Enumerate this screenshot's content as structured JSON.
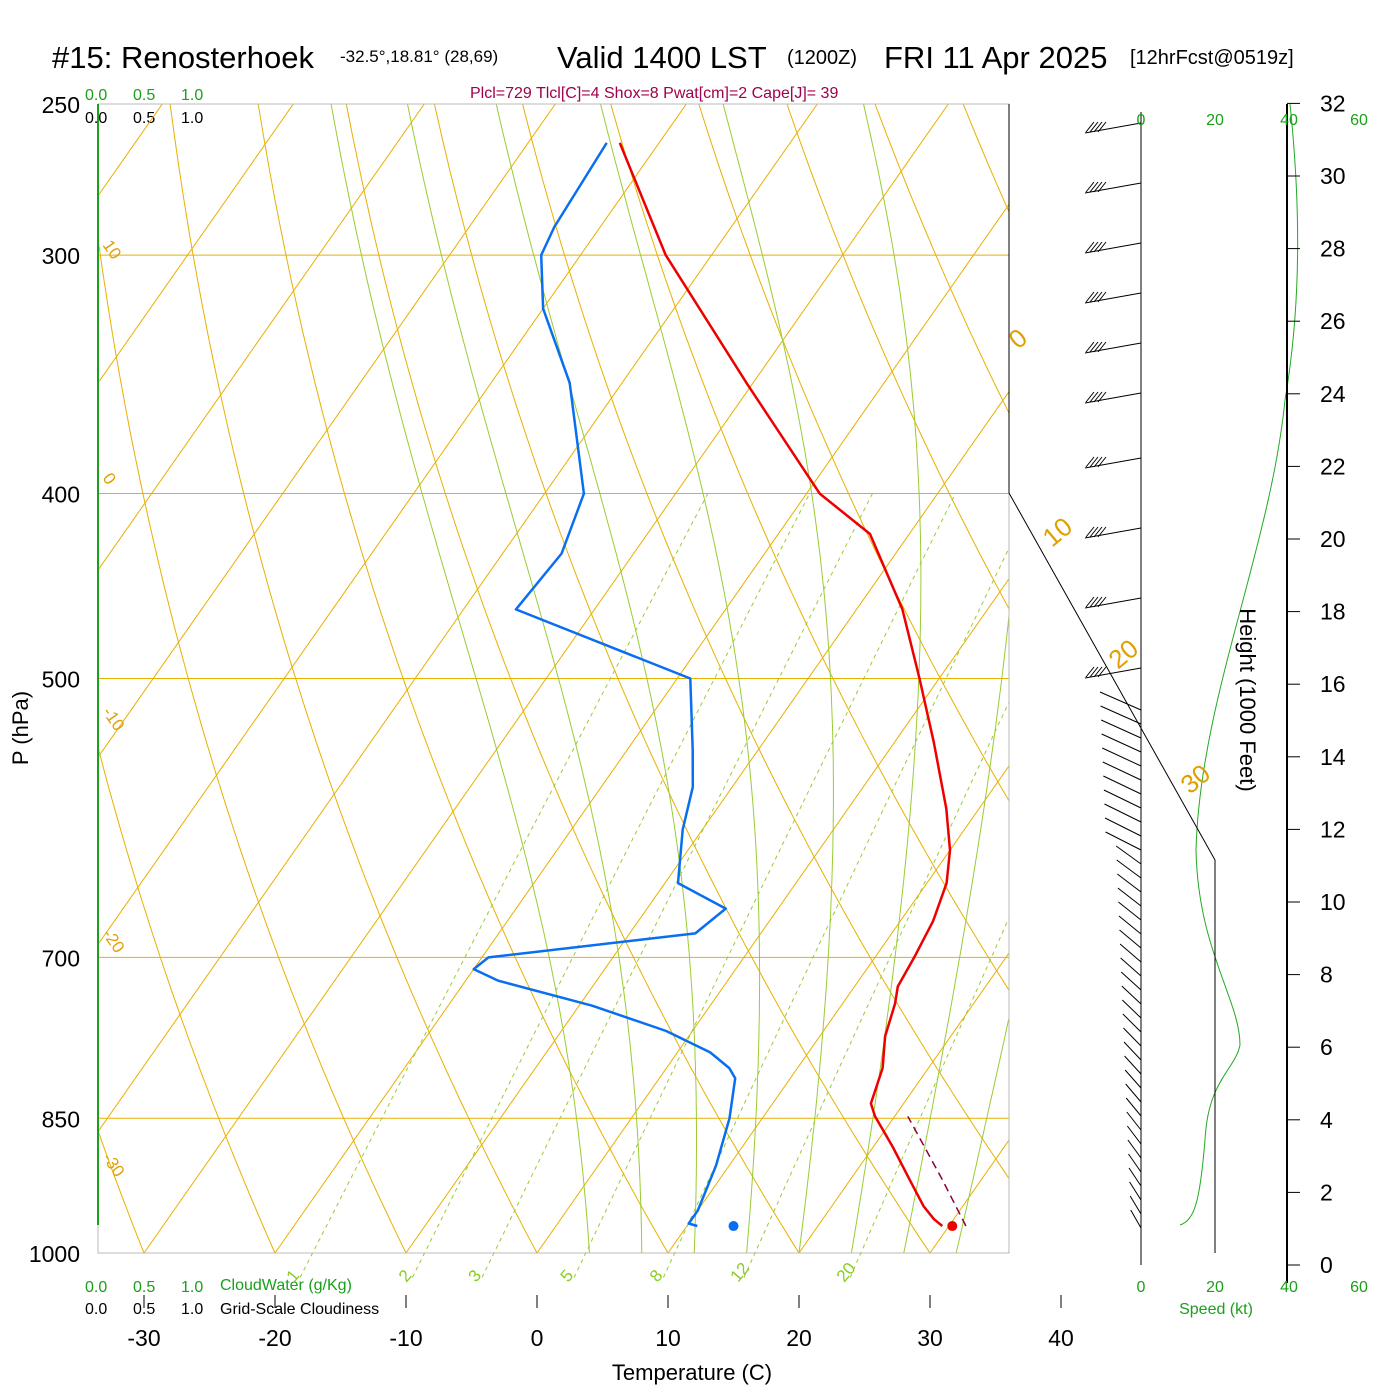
{
  "header": {
    "station": "#15: Renosterhoek",
    "coords": "-32.5°,18.81° (28,69)",
    "valid_label": "Valid 1400 LST",
    "utc": "(1200Z)",
    "date": "FRI 11 Apr 2025",
    "forecast": "[12hrFcst@0519z]"
  },
  "parcel_info": "Plcl=729 Tlcl[C]=4 Shox=8 Pwat[cm]=2 Cape[J]= 39",
  "scale_top": {
    "cloudwater_ticks": [
      "0.0",
      "0.5",
      "1.0"
    ],
    "cloudiness_ticks": [
      "0.0",
      "0.5",
      "1.0"
    ]
  },
  "scale_bottom": {
    "cloudwater_ticks": [
      "0.0",
      "0.5",
      "1.0"
    ],
    "cloudwater_label": "CloudWater (g/Kg)",
    "cloudiness_ticks": [
      "0.0",
      "0.5",
      "1.0"
    ],
    "cloudiness_label": "Grid-Scale Cloudiness"
  },
  "speed_axis": {
    "ticks": [
      "0",
      "20",
      "40",
      "60"
    ],
    "label": "Speed (kt)"
  },
  "colors": {
    "temperature": "#ee0000",
    "dewpoint": "#0a6ef0",
    "isobar_isotherm": "#e8b000",
    "dry_adiabat": "#e8b000",
    "moist_adiabat": "#99cc33",
    "mixing_ratio": "#99cc33",
    "parcel": "#8b0040",
    "wind_speed": "#22aa22"
  },
  "chart_data": {
    "type": "line",
    "title": "#15: Renosterhoek Valid 1400 LST (1200Z) FRI 11 Apr 2025",
    "xlabel": "Temperature (C)",
    "ylabel": "P (hPa)",
    "y2label": "Height (1000 Feet)",
    "xlim": [
      -34,
      36
    ],
    "ylim": [
      1000,
      250
    ],
    "x_ticks": [
      -30,
      -20,
      -10,
      0,
      10,
      20,
      30,
      40
    ],
    "pressure_levels": [
      250,
      300,
      400,
      500,
      700,
      850,
      1000
    ],
    "height_ticks": [
      0,
      2,
      4,
      6,
      8,
      10,
      12,
      14,
      16,
      18,
      20,
      22,
      24,
      26,
      28,
      30,
      32
    ],
    "isotherm_labels": [
      10,
      0,
      -10,
      -20,
      -30
    ],
    "dry_adiabat_labels": [
      0,
      10,
      20,
      30
    ],
    "mixing_ratio_labels": [
      1,
      2,
      3,
      5,
      8,
      12,
      20
    ],
    "series": [
      {
        "name": "Temperature",
        "points": [
          [
            29.5,
            968
          ],
          [
            28.5,
            960
          ],
          [
            27.0,
            945
          ],
          [
            24.5,
            915
          ],
          [
            21.5,
            880
          ],
          [
            18.5,
            848
          ],
          [
            17.5,
            835
          ],
          [
            16.5,
            800
          ],
          [
            15.0,
            770
          ],
          [
            14.0,
            740
          ],
          [
            13.3,
            725
          ],
          [
            13.0,
            700
          ],
          [
            12.5,
            670
          ],
          [
            11.5,
            640
          ],
          [
            10.0,
            615
          ],
          [
            7.5,
            585
          ],
          [
            3.0,
            540
          ],
          [
            -1.5,
            500
          ],
          [
            -6.5,
            460
          ],
          [
            -13.0,
            420
          ],
          [
            -19.0,
            400
          ],
          [
            -30.5,
            350
          ],
          [
            -43.5,
            300
          ],
          [
            -53.0,
            262
          ]
        ]
      },
      {
        "name": "Dewpoint",
        "points": [
          [
            10.8,
            968
          ],
          [
            10.0,
            965
          ],
          [
            10.0,
            950
          ],
          [
            9.0,
            900
          ],
          [
            7.5,
            850
          ],
          [
            5.8,
            810
          ],
          [
            4.8,
            800
          ],
          [
            2.5,
            785
          ],
          [
            -2.0,
            765
          ],
          [
            -9.0,
            742
          ],
          [
            -17.5,
            720
          ],
          [
            -20.0,
            710
          ],
          [
            -19.5,
            700
          ],
          [
            -5.0,
            680
          ],
          [
            -4.0,
            660
          ],
          [
            -9.0,
            640
          ],
          [
            -11.5,
            600
          ],
          [
            -13.0,
            570
          ],
          [
            -15.0,
            545
          ],
          [
            -19.0,
            500
          ],
          [
            -36.0,
            460
          ],
          [
            -35.5,
            430
          ],
          [
            -37.0,
            400
          ],
          [
            -44.0,
            350
          ],
          [
            -50.0,
            320
          ],
          [
            -53.0,
            300
          ],
          [
            -53.5,
            290
          ],
          [
            -54.0,
            262
          ]
        ]
      },
      {
        "name": "Parcel",
        "points": [
          [
            31.3,
            968
          ],
          [
            27.0,
            915
          ],
          [
            21.0,
            848
          ]
        ]
      }
    ],
    "surface_markers": {
      "temperature": 31.7,
      "dewpoint": 15.0,
      "pressure": 968
    }
  }
}
